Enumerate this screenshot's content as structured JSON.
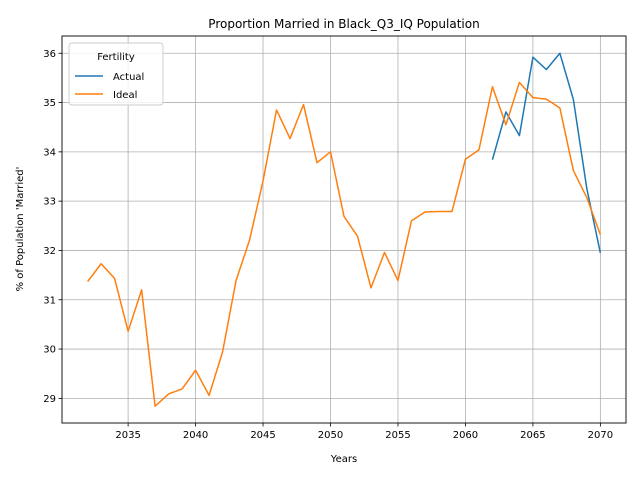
{
  "chart_data": {
    "type": "line",
    "title": "Proportion Married in Black_Q3_IQ Population",
    "xlabel": "Years",
    "ylabel": "% of Population 'Married'",
    "xlim": [
      2030.1,
      2071.9
    ],
    "ylim": [
      28.5,
      36.35
    ],
    "xticks": [
      2035,
      2040,
      2045,
      2050,
      2055,
      2060,
      2065,
      2070
    ],
    "yticks": [
      29,
      30,
      31,
      32,
      33,
      34,
      35,
      36
    ],
    "grid": true,
    "legend": {
      "title": "Fertility",
      "placement": "top-left"
    },
    "series": [
      {
        "name": "Actual",
        "color": "#1f77b4",
        "x": [
          2062,
          2063,
          2064,
          2065,
          2066,
          2067,
          2068,
          2069,
          2070
        ],
        "y": [
          33.84,
          34.81,
          34.33,
          35.92,
          35.67,
          36.0,
          35.06,
          33.25,
          31.95
        ]
      },
      {
        "name": "Ideal",
        "color": "#ff7f0e",
        "x": [
          2032,
          2033,
          2034,
          2035,
          2036,
          2037,
          2038,
          2039,
          2040,
          2041,
          2042,
          2043,
          2044,
          2045,
          2046,
          2047,
          2048,
          2049,
          2050,
          2051,
          2052,
          2053,
          2054,
          2055,
          2056,
          2057,
          2058,
          2059,
          2060,
          2061,
          2062,
          2063,
          2064,
          2065,
          2066,
          2067,
          2068,
          2069,
          2070
        ],
        "y": [
          31.37,
          31.73,
          31.43,
          30.36,
          31.2,
          28.84,
          29.09,
          29.19,
          29.57,
          29.06,
          29.94,
          31.39,
          32.21,
          33.41,
          34.85,
          34.27,
          34.96,
          33.78,
          34.0,
          32.69,
          32.29,
          31.24,
          31.96,
          31.39,
          32.6,
          32.78,
          32.79,
          32.79,
          33.85,
          34.04,
          35.32,
          34.55,
          35.41,
          35.1,
          35.07,
          34.89,
          33.62,
          33.07,
          32.32
        ]
      }
    ]
  }
}
